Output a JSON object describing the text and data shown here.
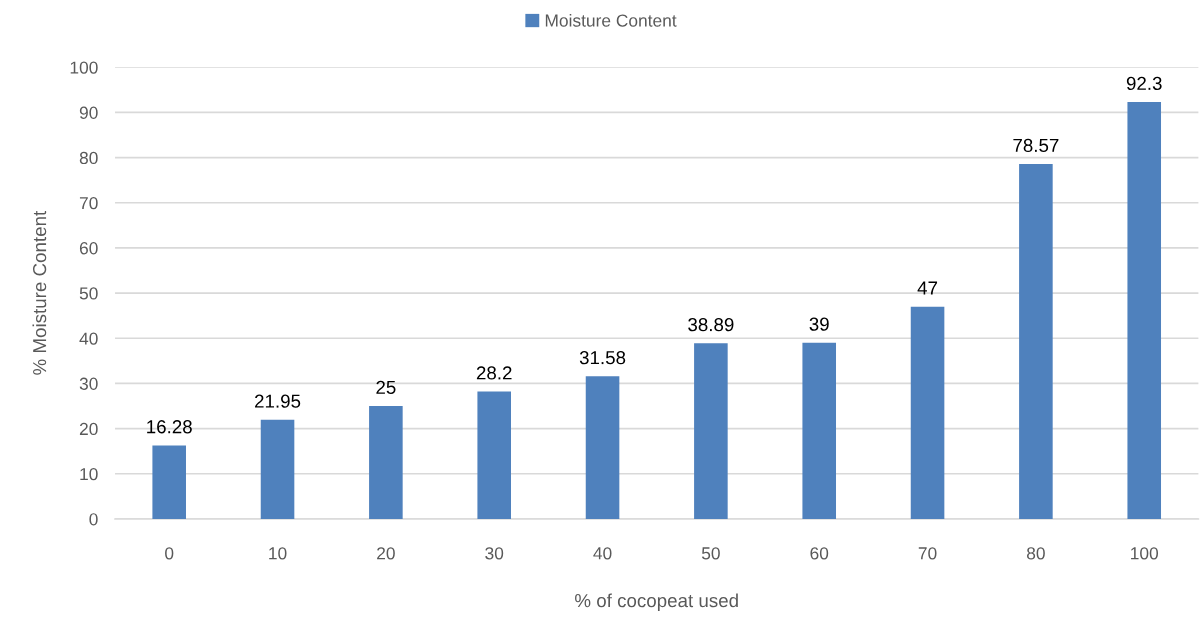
{
  "chart_data": {
    "type": "bar",
    "categories": [
      "0",
      "10",
      "20",
      "30",
      "40",
      "50",
      "60",
      "70",
      "80",
      "100"
    ],
    "series": [
      {
        "name": "Moisture Content",
        "color": "#4f81bd",
        "values": [
          16.28,
          21.95,
          25,
          28.2,
          31.58,
          38.89,
          39,
          47,
          78.57,
          92.3
        ]
      }
    ],
    "xlabel": "% of cocopeat used",
    "ylabel": "% Moisture Content",
    "ylim": [
      0,
      100
    ],
    "yticks": [
      0,
      10,
      20,
      30,
      40,
      50,
      60,
      70,
      80,
      90,
      100
    ],
    "grid": "y",
    "legend": "top",
    "data_labels": true
  }
}
